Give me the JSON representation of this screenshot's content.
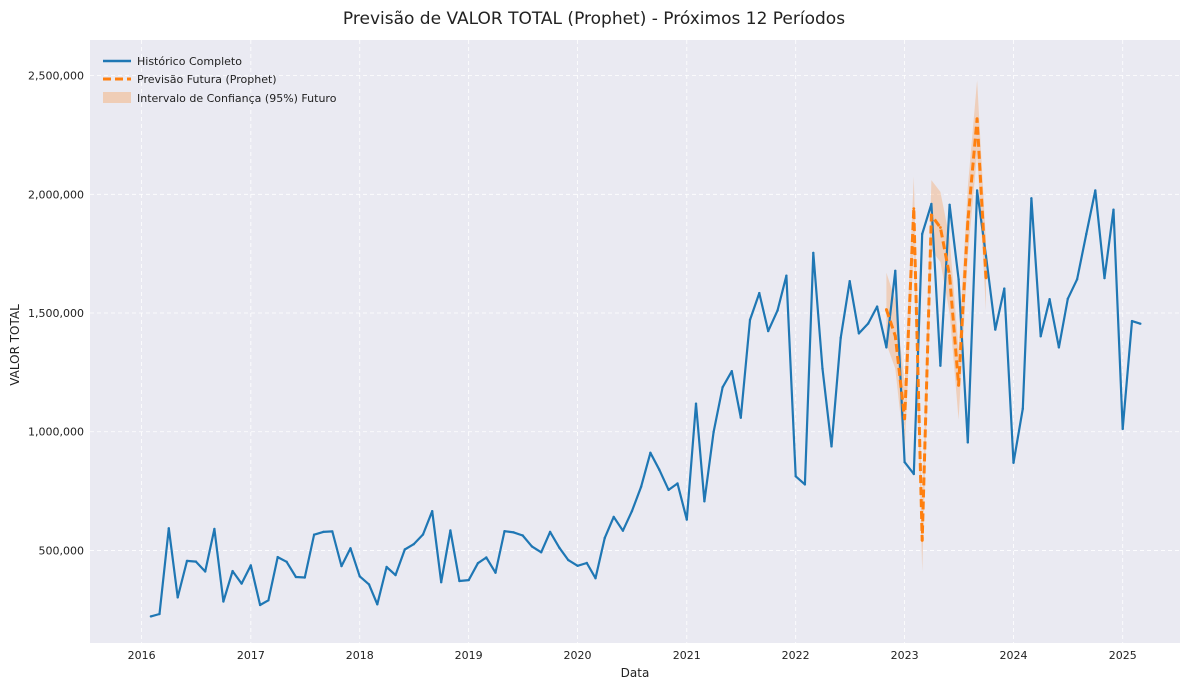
{
  "chart_data": {
    "type": "line",
    "title": "Previsão de VALOR TOTAL (Prophet) - Próximos 12 Períodos",
    "xlabel": "Data",
    "ylabel": "VALOR TOTAL",
    "x_range": [
      "2015-07-12",
      "2025-07-12"
    ],
    "ylim": [
      110000,
      2650000
    ],
    "x_ticks": [
      "2016",
      "2017",
      "2018",
      "2019",
      "2020",
      "2021",
      "2022",
      "2023",
      "2024",
      "2025"
    ],
    "y_ticks": [
      "500,000",
      "1,000,000",
      "1,500,000",
      "2,000,000",
      "2,500,000"
    ],
    "y_tick_values": [
      500000,
      1000000,
      1500000,
      2000000,
      2500000
    ],
    "grid": true,
    "legend_position": "top-left",
    "colors": {
      "history": "#1f77b4",
      "forecast": "#ff7f0e",
      "interval": "#f4b07a",
      "plot_background": "#eaeaf2"
    },
    "series": [
      {
        "name": "Histórico Completo",
        "style": "solid",
        "x": [
          "2016-02",
          "2016-03",
          "2016-04",
          "2016-05",
          "2016-06",
          "2016-07",
          "2016-08",
          "2016-09",
          "2016-10",
          "2016-11",
          "2016-12",
          "2017-01",
          "2017-02",
          "2017-03",
          "2017-04",
          "2017-05",
          "2017-06",
          "2017-07",
          "2017-08",
          "2017-09",
          "2017-10",
          "2017-11",
          "2017-12",
          "2018-01",
          "2018-02",
          "2018-03",
          "2018-04",
          "2018-05",
          "2018-06",
          "2018-07",
          "2018-08",
          "2018-09",
          "2018-10",
          "2018-11",
          "2018-12",
          "2019-01",
          "2019-02",
          "2019-03",
          "2019-04",
          "2019-05",
          "2019-06",
          "2019-07",
          "2019-08",
          "2019-09",
          "2019-10",
          "2019-11",
          "2019-12",
          "2020-01",
          "2020-02",
          "2020-03",
          "2020-04",
          "2020-05",
          "2020-06",
          "2020-07",
          "2020-08",
          "2020-09",
          "2020-10",
          "2020-11",
          "2020-12",
          "2021-01",
          "2021-02",
          "2021-03",
          "2021-04",
          "2021-05",
          "2021-06",
          "2021-07",
          "2021-08",
          "2021-09",
          "2021-10",
          "2021-11",
          "2021-12",
          "2022-01",
          "2022-02",
          "2022-03",
          "2022-04",
          "2022-05",
          "2022-06",
          "2022-07",
          "2022-08",
          "2022-09",
          "2022-10",
          "2022-11",
          "2022-12",
          "2023-01",
          "2023-02",
          "2023-03",
          "2023-04",
          "2023-05",
          "2023-06",
          "2023-07",
          "2023-08",
          "2023-09",
          "2023-10",
          "2023-11",
          "2023-12",
          "2024-01",
          "2024-02",
          "2024-03",
          "2024-04",
          "2024-05",
          "2024-06",
          "2024-07",
          "2024-08",
          "2024-09",
          "2024-10",
          "2024-11",
          "2024-12",
          "2025-01",
          "2025-02",
          "2025-03"
        ],
        "values": [
          222000,
          232000,
          593000,
          302000,
          456000,
          453000,
          411000,
          590000,
          285000,
          413000,
          360000,
          437000,
          270000,
          290000,
          472000,
          452000,
          388000,
          386000,
          566000,
          578000,
          580000,
          434000,
          509000,
          391000,
          357000,
          273000,
          430000,
          396000,
          504000,
          526000,
          567000,
          665000,
          366000,
          584000,
          371000,
          375000,
          446000,
          470000,
          406000,
          581000,
          576000,
          563000,
          517000,
          492000,
          578000,
          511000,
          459000,
          435000,
          447000,
          383000,
          552000,
          641000,
          583000,
          665000,
          768000,
          911000,
          840000,
          755000,
          782000,
          630000,
          1118000,
          707000,
          999000,
          1187000,
          1255000,
          1059000,
          1471000,
          1584000,
          1424000,
          1510000,
          1657000,
          812000,
          778000,
          1753000,
          1265000,
          938000,
          1395000,
          1634000,
          1414000,
          1456000,
          1527000,
          1355000,
          1678000,
          872000,
          822000,
          1833000,
          1959000,
          1278000,
          1956000,
          1642000,
          955000,
          2016000,
          1740000,
          1430000,
          1603000,
          869000,
          1097000,
          1983000,
          1402000,
          1558000,
          1355000,
          1560000,
          1642000,
          1833000,
          2016000,
          1647000,
          1935000,
          1012000,
          1466000,
          1455000
        ]
      },
      {
        "name": "Previsão Futura (Prophet)",
        "style": "dashed",
        "x": [
          "2022-11",
          "2022-12",
          "2023-01",
          "2023-02",
          "2023-03",
          "2023-04",
          "2023-05",
          "2023-06",
          "2023-07",
          "2023-08",
          "2023-09",
          "2023-10"
        ],
        "values": [
          1515000,
          1403000,
          1055000,
          1940000,
          543000,
          1913000,
          1860000,
          1657000,
          1196000,
          1884000,
          2318000,
          1648000
        ]
      },
      {
        "name": "Intervalo de Confiança (95%) Futuro",
        "style": "band",
        "x": [
          "2022-11",
          "2022-12",
          "2023-01",
          "2023-02",
          "2023-03",
          "2023-04",
          "2023-05",
          "2023-06",
          "2023-07",
          "2023-08",
          "2023-09",
          "2023-10"
        ],
        "lower": [
          1370000,
          1265000,
          905000,
          1790000,
          410000,
          1765000,
          1715000,
          1500000,
          1050000,
          1740000,
          2170000,
          1510000
        ],
        "upper": [
          1670000,
          1555000,
          1205000,
          2075000,
          680000,
          2060000,
          2010000,
          1815000,
          1345000,
          2030000,
          2480000,
          1800000
        ]
      }
    ]
  }
}
